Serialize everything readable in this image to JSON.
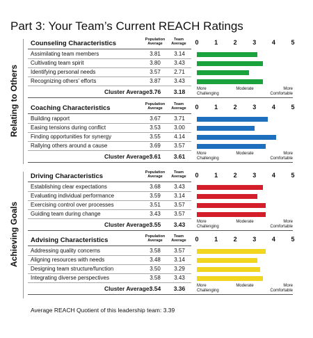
{
  "title": "Part 3: Your Team’s Current REACH Ratings",
  "columns": {
    "population": "Population Average",
    "team": "Team Average"
  },
  "scale": {
    "lim": [
      0,
      5
    ],
    "ticks": [
      0,
      1,
      2,
      3,
      4,
      5
    ],
    "labels": [
      "More Challenging",
      "Moderate",
      "More Comfortable"
    ]
  },
  "cluster_label": "Cluster Average:",
  "groups": [
    {
      "label": "Relating to Others",
      "sections": [
        {
          "name": "Counseling Characteristics",
          "color": "#1aa33c",
          "rows": [
            {
              "label": "Assimilating team members",
              "population": "3.81",
              "team": "3.14"
            },
            {
              "label": "Cultivating team spirit",
              "population": "3.80",
              "team": "3.43"
            },
            {
              "label": "Identifying personal needs",
              "population": "3.57",
              "team": "2.71"
            },
            {
              "label": "Recognizing others' efforts",
              "population": "3.87",
              "team": "3.43"
            }
          ],
          "cluster": {
            "population": "3.76",
            "team": "3.18"
          }
        },
        {
          "name": "Coaching Characteristics",
          "color": "#1f6fbf",
          "rows": [
            {
              "label": "Building rapport",
              "population": "3.67",
              "team": "3.71"
            },
            {
              "label": "Easing tensions during conflict",
              "population": "3.53",
              "team": "3.00"
            },
            {
              "label": "Finding opportunities for synergy",
              "population": "3.55",
              "team": "4.14"
            },
            {
              "label": "Rallying others around a cause",
              "population": "3.69",
              "team": "3.57"
            }
          ],
          "cluster": {
            "population": "3.61",
            "team": "3.61"
          }
        }
      ]
    },
    {
      "label": "Achieving Goals",
      "sections": [
        {
          "name": "Driving Characteristics",
          "color": "#d41f2b",
          "rows": [
            {
              "label": "Establishing clear expectations",
              "population": "3.68",
              "team": "3.43"
            },
            {
              "label": "Evaluating individual performance",
              "population": "3.59",
              "team": "3.14"
            },
            {
              "label": "Exercising control over processes",
              "population": "3.51",
              "team": "3.57"
            },
            {
              "label": "Guiding team during change",
              "population": "3.43",
              "team": "3.57"
            }
          ],
          "cluster": {
            "population": "3.55",
            "team": "3.43"
          }
        },
        {
          "name": "Advising Characteristics",
          "color": "#f2d51e",
          "rows": [
            {
              "label": "Addressing quality concerns",
              "population": "3.58",
              "team": "3.57"
            },
            {
              "label": "Aligning resources with needs",
              "population": "3.48",
              "team": "3.14"
            },
            {
              "label": "Designing team structure/function",
              "population": "3.50",
              "team": "3.29"
            },
            {
              "label": "Integrating diverse perspectives",
              "population": "3.58",
              "team": "3.43"
            }
          ],
          "cluster": {
            "population": "3.54",
            "team": "3.36"
          }
        }
      ]
    }
  ],
  "footer": "Average REACH Quotient of this leadership team: 3.39"
}
